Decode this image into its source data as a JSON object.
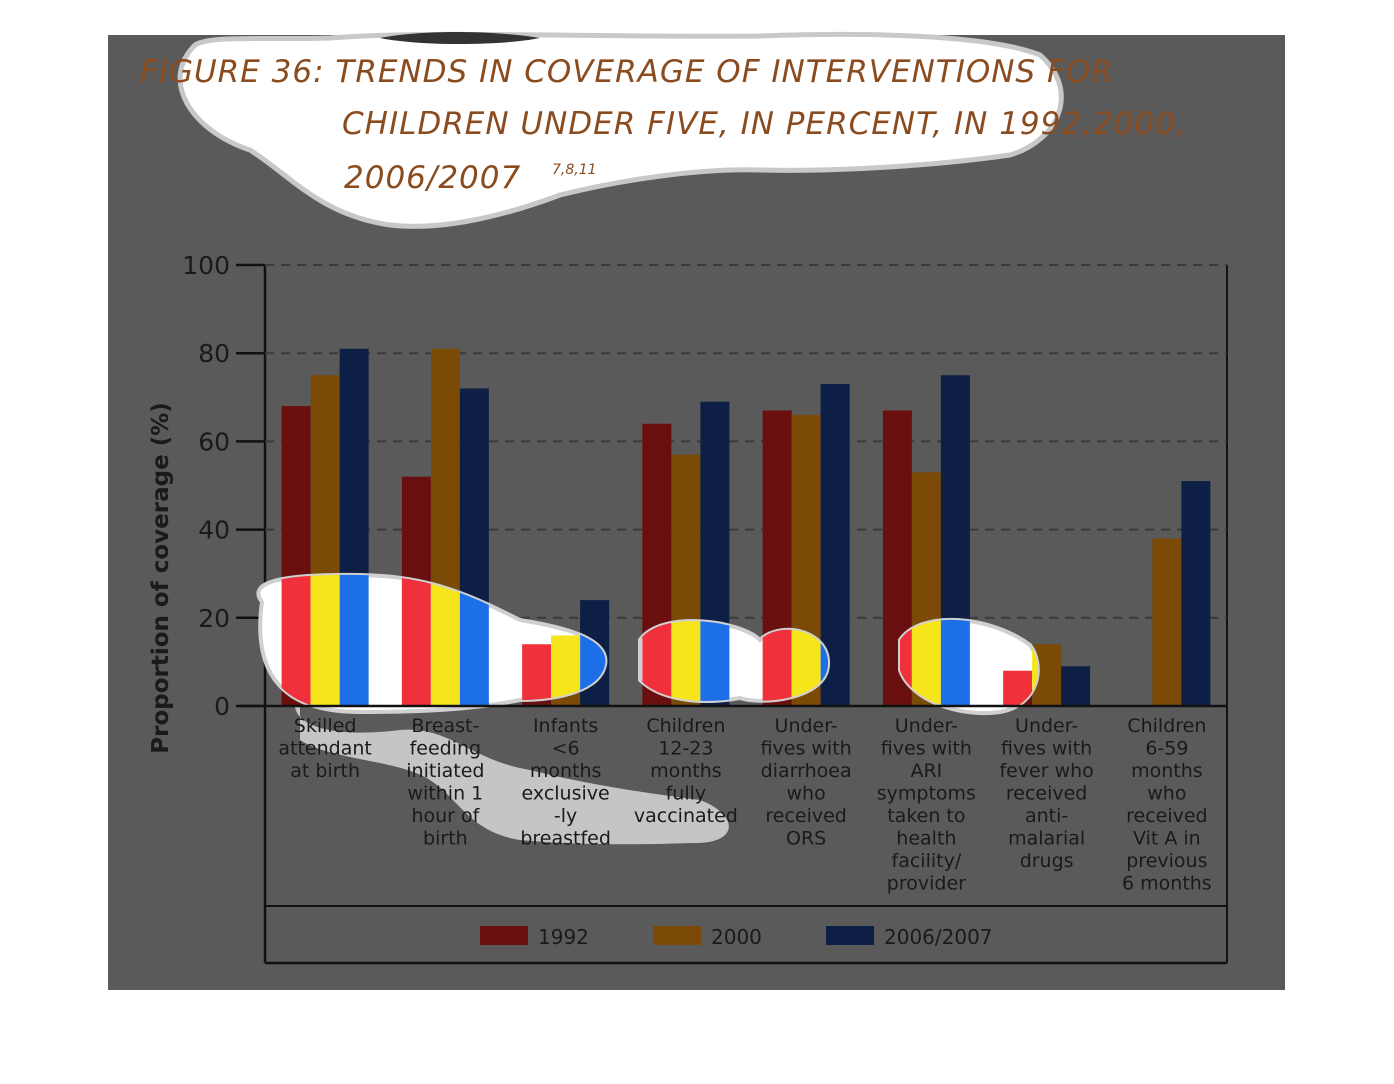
{
  "title": {
    "lines": [
      "FIGURE 36: TRENDS IN COVERAGE OF INTERVENTIONS FOR",
      "CHILDREN UNDER FIVE, IN PERCENT, IN 1992,2000,",
      "2006/2007"
    ],
    "superscript": "7,8,11"
  },
  "colors": {
    "backdrop": "#5a5a5a",
    "series_1992": "#6a0f0f",
    "series_2000": "#7a4a06",
    "series_2006": "#0d1f45",
    "highlight_1992": "#f0303a",
    "highlight_2000": "#f7e51c",
    "highlight_2006": "#1d6fe8"
  },
  "chart_data": {
    "type": "bar",
    "ylabel": "Proportion of coverage (%)",
    "ylim": [
      0,
      100
    ],
    "yticks": [
      0,
      20,
      40,
      60,
      80,
      100
    ],
    "grid": "dashed horizontal",
    "legend_position": "bottom",
    "categories": [
      [
        "Skilled",
        "attendant",
        "at birth"
      ],
      [
        "Breast-",
        "feeding",
        "initiated",
        "within 1",
        "hour of",
        "birth"
      ],
      [
        "Infants",
        "<6",
        "months",
        "exclusive",
        "-ly",
        "breastfed"
      ],
      [
        "Children",
        "12-23",
        "months",
        "fully",
        "vaccinated"
      ],
      [
        "Under-",
        "fives with",
        "diarrhoea",
        "who",
        "received",
        "ORS"
      ],
      [
        "Under-",
        "fives with",
        "ARI",
        "symptoms",
        "taken to",
        "health",
        "facility/",
        "provider"
      ],
      [
        "Under-",
        "fives with",
        "fever who",
        "received",
        "anti-",
        "malarial",
        "drugs"
      ],
      [
        "Children",
        "6-59",
        "months",
        "who",
        "received",
        "Vit A in",
        "previous",
        "6 months"
      ]
    ],
    "series": [
      {
        "name": "1992",
        "values": [
          68,
          52,
          14,
          64,
          67,
          67,
          8,
          null
        ]
      },
      {
        "name": "2000",
        "values": [
          75,
          81,
          16,
          57,
          66,
          53,
          14,
          38
        ]
      },
      {
        "name": "2006/2007",
        "values": [
          81,
          72,
          24,
          69,
          73,
          75,
          9,
          51
        ]
      }
    ]
  }
}
